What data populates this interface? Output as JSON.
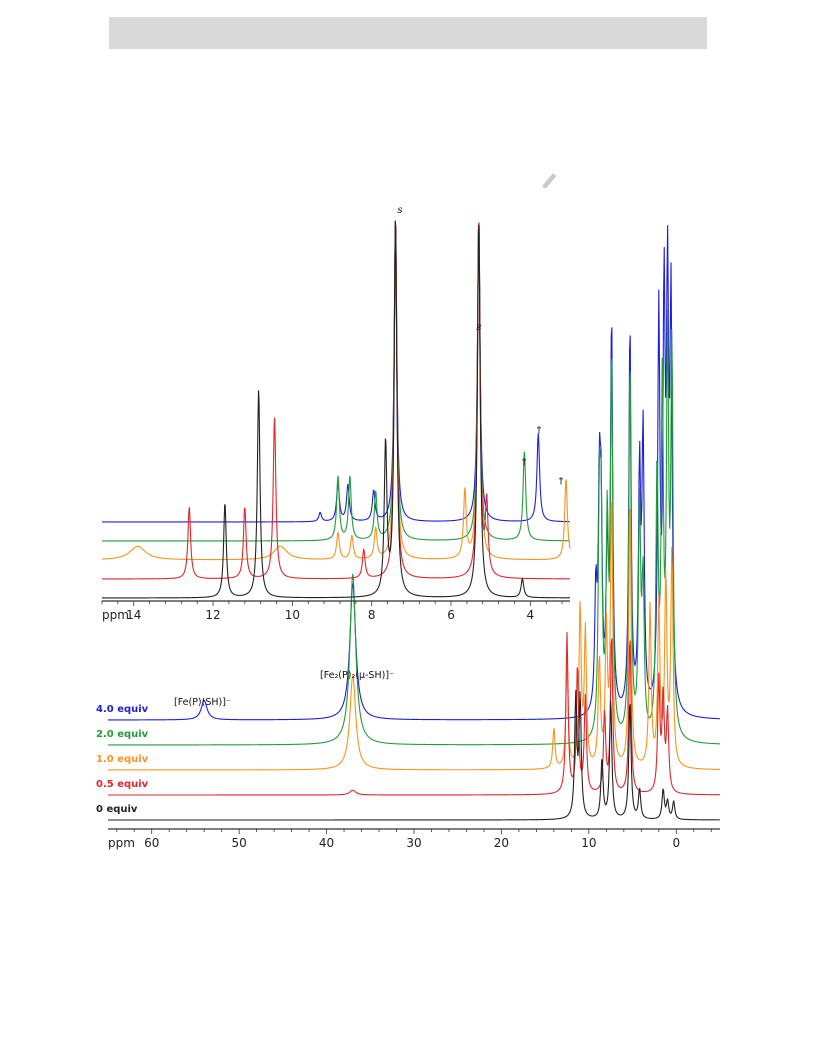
{
  "page": {
    "icon": "pencil-icon"
  },
  "chart_data": [
    {
      "type": "line",
      "title": "",
      "xlabel": "ppm",
      "ylabel": "",
      "x_reversed": true,
      "xlim": [
        -5,
        65
      ],
      "xticks": [
        60,
        50,
        40,
        30,
        20,
        10,
        0
      ],
      "xtick_labels": [
        "60",
        "50",
        "40",
        "30",
        "20",
        "10",
        "0"
      ],
      "series": [
        {
          "name": "0 equiv",
          "color": "#222222",
          "peaks": [
            [
              11.5,
              1.0
            ],
            [
              11.0,
              1.0
            ],
            [
              8.5,
              0.5
            ],
            [
              7.5,
              1.0
            ],
            [
              5.3,
              1.0
            ],
            [
              4.2,
              0.25
            ],
            [
              1.5,
              0.25
            ],
            [
              1.0,
              0.15
            ],
            [
              0.3,
              0.15
            ]
          ]
        },
        {
          "name": "0.5 equiv",
          "color": "#e0262b",
          "peaks": [
            [
              37,
              0.03
            ],
            [
              12.5,
              1.0
            ],
            [
              11.3,
              0.8
            ],
            [
              10.4,
              0.6
            ],
            [
              8.2,
              0.5
            ],
            [
              7.4,
              1.0
            ],
            [
              5.3,
              1.0
            ],
            [
              2.0,
              0.7
            ],
            [
              1.5,
              0.6
            ],
            [
              1.0,
              0.5
            ]
          ]
        },
        {
          "name": "1.0 equiv",
          "color": "#f5941e",
          "peaks": [
            [
              37,
              0.35
            ],
            [
              14.0,
              0.15
            ],
            [
              12.5,
              0.4
            ],
            [
              11.0,
              0.6
            ],
            [
              10.4,
              0.5
            ],
            [
              8.8,
              0.4
            ],
            [
              8.0,
              0.5
            ],
            [
              7.4,
              1.0
            ],
            [
              5.3,
              1.0
            ],
            [
              3.0,
              0.6
            ],
            [
              2.0,
              0.6
            ],
            [
              1.2,
              0.7
            ],
            [
              0.5,
              0.8
            ]
          ]
        },
        {
          "name": "2.0 equiv",
          "color": "#239b3a",
          "peaks": [
            [
              37,
              0.45
            ],
            [
              8.8,
              0.55
            ],
            [
              8.6,
              0.5
            ],
            [
              7.9,
              0.55
            ],
            [
              7.4,
              1.0
            ],
            [
              5.3,
              1.0
            ],
            [
              4.2,
              0.6
            ],
            [
              3.8,
              0.4
            ],
            [
              2.2,
              0.7
            ],
            [
              1.6,
              0.9
            ],
            [
              1.0,
              1.0
            ],
            [
              0.5,
              1.0
            ]
          ]
        },
        {
          "name": "4.0 equiv",
          "color": "#1e1edc",
          "peaks": [
            [
              54,
              0.05
            ],
            [
              37,
              0.35
            ],
            [
              9.2,
              0.3
            ],
            [
              8.8,
              0.5
            ],
            [
              8.6,
              0.45
            ],
            [
              7.9,
              0.4
            ],
            [
              7.4,
              1.0
            ],
            [
              5.3,
              1.0
            ],
            [
              4.2,
              0.6
            ],
            [
              3.8,
              0.7
            ],
            [
              2.0,
              1.0
            ],
            [
              1.4,
              1.0
            ],
            [
              1.0,
              1.0
            ],
            [
              0.6,
              1.0
            ]
          ]
        }
      ],
      "annotations": [
        "[Fe(P)(SH)]⁻",
        "[Fe₂(P)₂(μ-SH)]⁻"
      ]
    },
    {
      "type": "line",
      "title": "",
      "xlabel": "ppm",
      "ylabel": "",
      "x_reversed": true,
      "xlim": [
        3.0,
        14.8
      ],
      "xticks": [
        14,
        12,
        10,
        8,
        6,
        4
      ],
      "xtick_labels": [
        "14",
        "12",
        "10",
        "8",
        "6",
        "4"
      ],
      "series": [
        {
          "name": "0 equiv",
          "color": "#222222",
          "peaks": [
            [
              11.7,
              0.25
            ],
            [
              10.85,
              0.55
            ],
            [
              7.65,
              0.4
            ],
            [
              7.4,
              1.0
            ],
            [
              5.3,
              1.0
            ],
            [
              4.2,
              0.05
            ]
          ]
        },
        {
          "name": "0.5 equiv",
          "color": "#e0262b",
          "peaks": [
            [
              12.6,
              0.2
            ],
            [
              11.2,
              0.2
            ],
            [
              10.45,
              0.45
            ],
            [
              8.2,
              0.08
            ],
            [
              7.4,
              1.0
            ],
            [
              5.3,
              1.0
            ],
            [
              5.1,
              0.2
            ]
          ]
        },
        {
          "name": "1.0 equiv",
          "color": "#f5941e",
          "peaks": [
            [
              13.9,
              0.04
            ],
            [
              10.3,
              0.04
            ],
            [
              8.85,
              0.08
            ],
            [
              8.5,
              0.07
            ],
            [
              7.9,
              0.09
            ],
            [
              7.4,
              1.0
            ],
            [
              5.65,
              0.2
            ],
            [
              5.3,
              1.0
            ],
            [
              3.1,
              0.24
            ]
          ]
        },
        {
          "name": "2.0 equiv",
          "color": "#239b3a",
          "peaks": [
            [
              8.85,
              0.2
            ],
            [
              8.55,
              0.2
            ],
            [
              7.9,
              0.15
            ],
            [
              7.4,
              1.0
            ],
            [
              5.3,
              1.0
            ],
            [
              4.15,
              0.28
            ]
          ]
        },
        {
          "name": "4.0 equiv",
          "color": "#1e1edc",
          "peaks": [
            [
              9.3,
              0.03
            ],
            [
              8.85,
              0.13
            ],
            [
              8.6,
              0.12
            ],
            [
              7.95,
              0.1
            ],
            [
              7.4,
              1.0
            ],
            [
              5.3,
              1.0
            ],
            [
              3.8,
              0.29
            ]
          ]
        }
      ],
      "annotations": [
        "s",
        "s",
        "†",
        "†",
        "†"
      ]
    }
  ]
}
